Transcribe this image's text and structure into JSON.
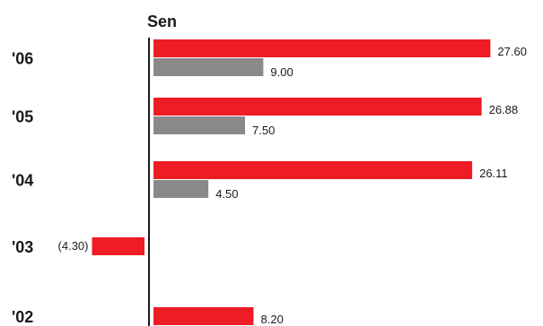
{
  "chart_data": {
    "type": "bar",
    "orientation": "horizontal",
    "unit": "Sen",
    "categories": [
      "'06",
      "'05",
      "'04",
      "'03",
      "'02"
    ],
    "series": [
      {
        "color": "#ee1c25",
        "values": [
          27.6,
          26.88,
          26.11,
          -4.3,
          8.2
        ],
        "labels": [
          "27.60",
          "26.88",
          "26.11",
          "(4.30)",
          "8.20"
        ]
      },
      {
        "color": "#898989",
        "values": [
          9.0,
          7.5,
          4.5,
          null,
          null
        ],
        "labels": [
          "9.00",
          "7.50",
          "4.50",
          null,
          null
        ]
      }
    ],
    "axis_color": "#1a1a1a",
    "grid": false
  }
}
